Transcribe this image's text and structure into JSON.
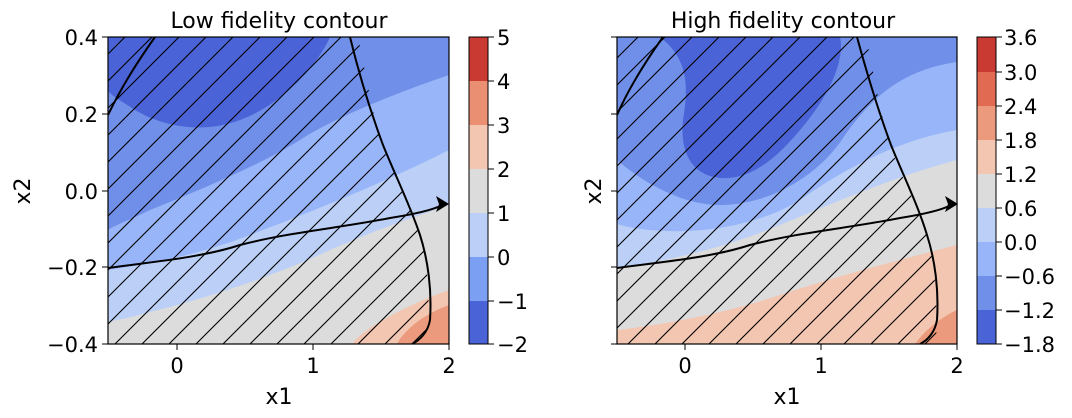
{
  "chart_data": [
    {
      "type": "contour",
      "title": "Low fidelity contour",
      "xlabel": "x1",
      "ylabel": "x2",
      "xlim": [
        -0.5,
        2
      ],
      "ylim": [
        -0.4,
        0.4
      ],
      "xticks": [
        "0",
        "1",
        "2"
      ],
      "yticks": [
        "−0.4",
        "−0.2",
        "0.0",
        "0.2",
        "0.4"
      ],
      "levels": [
        -2,
        -1,
        0,
        1,
        2,
        3,
        4,
        5
      ],
      "colorbar_ticks": [
        "−2",
        "−1",
        "0",
        "1",
        "2",
        "3",
        "4",
        "5"
      ],
      "hatched_region": "diagonal hatching over most of the plot, to the left of the boundary curve",
      "boundary_curve": [
        [
          1.25,
          0.4
        ],
        [
          1.35,
          0.2
        ],
        [
          1.55,
          0.0
        ],
        [
          1.78,
          -0.2
        ],
        [
          1.85,
          -0.3
        ],
        [
          1.82,
          -0.4
        ]
      ],
      "arrow_path": [
        [
          -0.5,
          -0.2
        ],
        [
          0.0,
          -0.17
        ],
        [
          0.5,
          -0.12
        ],
        [
          1.0,
          -0.1
        ],
        [
          1.5,
          -0.07
        ],
        [
          2.0,
          -0.04
        ]
      ],
      "corner_curve": [
        [
          -0.5,
          0.2
        ],
        [
          -0.35,
          0.32
        ],
        [
          -0.3,
          0.4
        ]
      ]
    },
    {
      "type": "contour",
      "title": "High fidelity contour",
      "xlabel": "x1",
      "ylabel": "x2",
      "xlim": [
        -0.5,
        2
      ],
      "ylim": [
        -0.4,
        0.4
      ],
      "xticks": [
        "0",
        "1",
        "2"
      ],
      "yticks": [],
      "levels": [
        -1.8,
        -1.2,
        -0.6,
        0.0,
        0.6,
        1.2,
        1.8,
        2.4,
        3.0,
        3.6
      ],
      "colorbar_ticks": [
        "−1.8",
        "−1.2",
        "−0.6",
        "0.0",
        "0.6",
        "1.2",
        "1.8",
        "2.4",
        "3.0",
        "3.6"
      ],
      "hatched_region": "diagonal hatching over most of the plot, to the left of the boundary curve",
      "boundary_curve": [
        [
          1.25,
          0.4
        ],
        [
          1.35,
          0.2
        ],
        [
          1.55,
          0.0
        ],
        [
          1.78,
          -0.2
        ],
        [
          1.85,
          -0.3
        ],
        [
          1.82,
          -0.4
        ]
      ],
      "arrow_path": [
        [
          -0.5,
          -0.2
        ],
        [
          0.0,
          -0.17
        ],
        [
          0.5,
          -0.12
        ],
        [
          1.0,
          -0.1
        ],
        [
          1.5,
          -0.07
        ],
        [
          2.0,
          -0.04
        ]
      ],
      "corner_curve": [
        [
          -0.5,
          0.2
        ],
        [
          -0.35,
          0.32
        ],
        [
          -0.3,
          0.4
        ]
      ]
    }
  ],
  "colors": {
    "coolwarm": [
      "#4a63d6",
      "#6f8fe8",
      "#97b5f8",
      "#bcd0f7",
      "#dcdcdc",
      "#f2c6b0",
      "#eb9a7d",
      "#e06a52",
      "#c83a32"
    ]
  }
}
